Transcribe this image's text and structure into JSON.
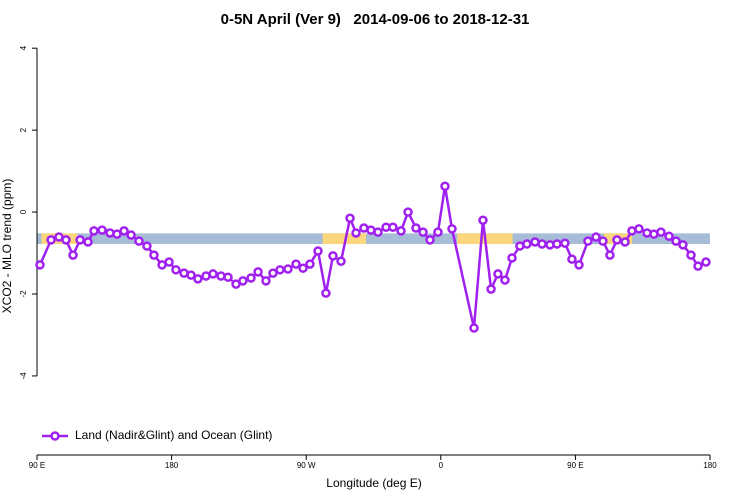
{
  "chart_data": {
    "type": "line",
    "title": "0-5N April (Ver 9)   2014-09-06 to 2018-12-31",
    "x_label": "Longitude (deg E)",
    "y_label": "XCO2 - MLO trend (ppm)",
    "xlim": [
      90,
      540
    ],
    "xticks": [
      {
        "value": 90,
        "label": "90 E"
      },
      {
        "value": 180,
        "label": "180"
      },
      {
        "value": 270,
        "label": "90 W"
      },
      {
        "value": 360,
        "label": "0"
      },
      {
        "value": 450,
        "label": "90 E"
      },
      {
        "value": 540,
        "label": "180"
      }
    ],
    "ylim": [
      -5.93,
      4.2
    ],
    "yticks": [
      4,
      2,
      0,
      -2,
      -4
    ],
    "grid": false,
    "legend": "bottom-left",
    "background_band": {
      "ylim": [
        -0.78,
        -0.52
      ],
      "color": "#a7bcd6",
      "highlight_color": "#fbd67c",
      "highlights": [
        [
          93,
          117
        ],
        [
          281,
          310
        ],
        [
          371,
          408
        ],
        [
          469,
          488
        ]
      ]
    },
    "series": [
      {
        "name": "Land (Nadir&Glint) and Ocean (Glint)",
        "color": "#a020f0",
        "x": [
          92,
          99.4,
          104.7,
          109.4,
          114.1,
          118.8,
          124.1,
          128.1,
          133.5,
          138.8,
          143.5,
          148.2,
          152.9,
          158.2,
          163.5,
          168.2,
          173.6,
          178.3,
          182.9,
          188.3,
          193,
          197.6,
          203,
          207.7,
          213,
          217.7,
          223.1,
          227.7,
          233.1,
          237.8,
          243.1,
          247.8,
          252.5,
          257.8,
          263.2,
          267.9,
          272.5,
          277.9,
          283.2,
          287.9,
          293.3,
          299.3,
          303.3,
          308.6,
          313.3,
          318,
          323.4,
          328,
          333.4,
          338.1,
          343.4,
          348.1,
          352.8,
          358.1,
          362.8,
          367.5,
          382.2,
          388.2,
          393.6,
          398.2,
          402.9,
          407.6,
          412.9,
          417.6,
          423,
          427.7,
          433,
          437.7,
          443,
          447.7,
          452.4,
          458.4,
          463.8,
          468.4,
          473.1,
          477.8,
          483.2,
          487.8,
          492.5,
          497.9,
          502.5,
          507.2,
          512.6,
          517.3,
          521.9,
          527.3,
          532,
          537.3
        ],
        "values": [
          -1.29,
          -0.68,
          -0.61,
          -0.68,
          -1.05,
          -0.68,
          -0.73,
          -0.46,
          -0.44,
          -0.51,
          -0.54,
          -0.46,
          -0.56,
          -0.71,
          -0.83,
          -1.05,
          -1.29,
          -1.22,
          -1.41,
          -1.49,
          -1.54,
          -1.63,
          -1.56,
          -1.51,
          -1.56,
          -1.59,
          -1.76,
          -1.68,
          -1.61,
          -1.46,
          -1.68,
          -1.49,
          -1.41,
          -1.39,
          -1.27,
          -1.37,
          -1.27,
          -0.95,
          -1.98,
          -1.07,
          -1.2,
          -0.15,
          -0.51,
          -0.39,
          -0.44,
          -0.49,
          -0.37,
          -0.37,
          -0.46,
          0,
          -0.39,
          -0.49,
          -0.68,
          -0.49,
          0.63,
          -0.41,
          -2.83,
          -0.2,
          -1.88,
          -1.51,
          -1.66,
          -1.12,
          -0.83,
          -0.78,
          -0.73,
          -0.78,
          -0.8,
          -0.78,
          -0.76,
          -1.15,
          -1.29,
          -0.71,
          -0.61,
          -0.71,
          -1.05,
          -0.68,
          -0.73,
          -0.46,
          -0.41,
          -0.51,
          -0.54,
          -0.49,
          -0.59,
          -0.71,
          -0.8,
          -1.05,
          -1.32,
          -1.22
        ]
      }
    ]
  }
}
